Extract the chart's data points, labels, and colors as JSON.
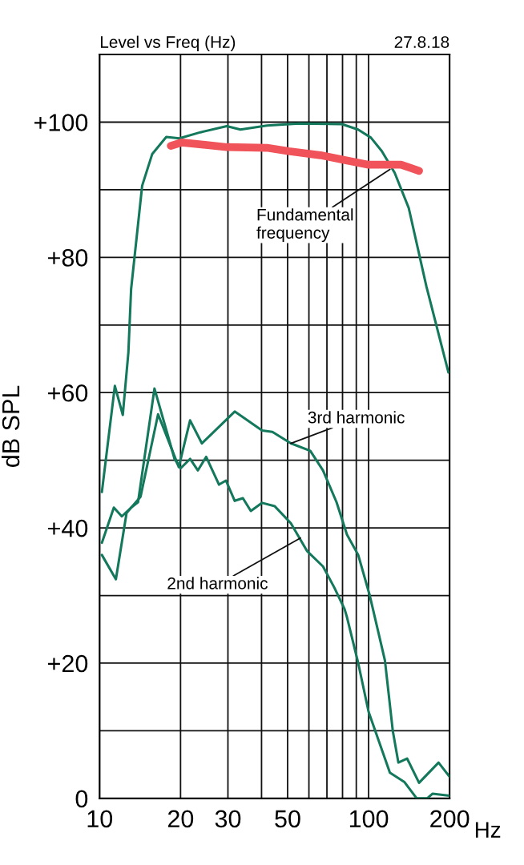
{
  "chart_data": {
    "type": "line",
    "title": "Level vs Freq (Hz)",
    "subtitle": "27.8.18",
    "xlabel": "Hz",
    "ylabel": "dB SPL",
    "log": "x",
    "xlim": [
      10,
      200
    ],
    "ylim": [
      0,
      110
    ],
    "xticks": [
      10,
      20,
      30,
      {
        "value": 40,
        "label": null
      },
      50,
      {
        "value": 60,
        "label": null
      },
      {
        "value": 70,
        "label": null
      },
      {
        "value": 80,
        "label": null
      },
      {
        "value": 90,
        "label": null
      },
      100,
      200
    ],
    "yticks": [
      {
        "value": 0,
        "label": "0"
      },
      {
        "value": 10,
        "label": null
      },
      {
        "value": 20,
        "label": "+20"
      },
      {
        "value": 30,
        "label": null
      },
      {
        "value": 40,
        "label": "+40"
      },
      {
        "value": 50,
        "label": null
      },
      {
        "value": 60,
        "label": "+60"
      },
      {
        "value": 70,
        "label": null
      },
      {
        "value": 80,
        "label": "+80"
      },
      {
        "value": 90,
        "label": null
      },
      {
        "value": 100,
        "label": "+100"
      }
    ],
    "grid": true,
    "marker": "none",
    "line_style": "solid",
    "series": [
      {
        "color": "#13785c",
        "x": [
          10.2,
          11.4,
          12.2,
          12.8,
          13.1,
          14.4,
          15.7,
          17.7,
          19.8,
          23.7,
          29.7,
          33.4,
          41.9,
          55.2,
          79.6,
          91.4,
          102,
          112,
          125,
          141,
          164,
          198
        ],
        "values": [
          45.3,
          61,
          56.7,
          66,
          75.3,
          90.6,
          95.3,
          97.8,
          97.6,
          98.5,
          99.4,
          98.9,
          99.5,
          99.8,
          99.7,
          98.9,
          97.7,
          95.7,
          92.5,
          87.3,
          75.7,
          63
        ]
      },
      {
        "color": "#f0545a",
        "x": [
          18.4,
          20.2,
          29.7,
          41.9,
          50.4,
          66.2,
          83.3,
          100,
          132,
          154
        ],
        "values": [
          96.5,
          97,
          96.3,
          96.2,
          95.7,
          95.1,
          94.3,
          93.7,
          93.7,
          92.8
        ]
      },
      {
        "color": "#13785c",
        "x": [
          10.2,
          11.3,
          12.1,
          13.1,
          13.9,
          16.0,
          19.0,
          20.0,
          21.7,
          23.2,
          24.9,
          27.8,
          29.5,
          31.8,
          34.1,
          36.5,
          40.2,
          44.8,
          51.4,
          59.0,
          67.7,
          74.5,
          81.4,
          83.1,
          91.5,
          100,
          120,
          136,
          151,
          165,
          173,
          200
        ],
        "values": [
          37.8,
          43,
          41.7,
          43,
          43.8,
          60.6,
          50.2,
          48.8,
          50.2,
          48.5,
          50.5,
          46.4,
          47,
          44,
          44.4,
          42.5,
          43.7,
          43.2,
          40.7,
          36.6,
          34.3,
          31.2,
          28,
          26.8,
          20,
          12.8,
          3.8,
          2.4,
          0,
          0,
          0.7,
          0.4
        ]
      },
      {
        "color": "#13785c",
        "x": [
          10.2,
          11.5,
          12.6,
          14.2,
          16.5,
          19.7,
          21.7,
          24.0,
          31.8,
          40.2,
          43.9,
          51.4,
          60.7,
          67.7,
          76.0,
          83.1,
          91.5,
          101,
          115,
          123,
          129,
          139,
          154,
          182,
          200
        ],
        "values": [
          36,
          32.4,
          42.2,
          44.6,
          56.8,
          49,
          55.9,
          52.5,
          57.2,
          54.4,
          54.2,
          52.5,
          51.4,
          48.5,
          43.8,
          39,
          36,
          30,
          20.4,
          10,
          5.3,
          5.9,
          2.3,
          5.3,
          3.2
        ]
      }
    ],
    "annotations": [
      {
        "text": "Fundamental\nfrequency",
        "x": 120,
        "y": 93
      },
      {
        "text": "3rd harmonic",
        "x": 51.4,
        "y": 52.5
      },
      {
        "text": "2nd harmonic",
        "x": 55.8,
        "y": 38.5
      }
    ]
  }
}
